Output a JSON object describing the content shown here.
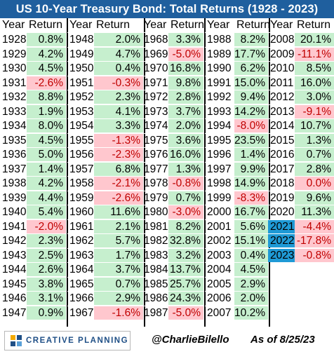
{
  "title": "US 10-Year Treasury Bond: Total Returns (1928 - 2023)",
  "header": {
    "year": "Year",
    "return": "Return"
  },
  "colors": {
    "title_bg": "#1f5f9e",
    "positive_fill": "#c6efce",
    "negative_fill": "#ffc7ce",
    "negative_text": "#c00000",
    "highlight_year_fill": "#1f9ad6",
    "logo_text": "#1f4f86"
  },
  "chart_data": {
    "type": "table",
    "title": "US 10-Year Treasury Bond: Total Returns (1928 - 2023)",
    "columns": [
      "Year",
      "Return"
    ],
    "rows": [
      [
        "1928",
        "0.8%"
      ],
      [
        "1929",
        "4.2%"
      ],
      [
        "1930",
        "4.5%"
      ],
      [
        "1931",
        "-2.6%"
      ],
      [
        "1932",
        "8.8%"
      ],
      [
        "1933",
        "1.9%"
      ],
      [
        "1934",
        "8.0%"
      ],
      [
        "1935",
        "4.5%"
      ],
      [
        "1936",
        "5.0%"
      ],
      [
        "1937",
        "1.4%"
      ],
      [
        "1938",
        "4.2%"
      ],
      [
        "1939",
        "4.4%"
      ],
      [
        "1940",
        "5.4%"
      ],
      [
        "1941",
        "-2.0%"
      ],
      [
        "1942",
        "2.3%"
      ],
      [
        "1943",
        "2.5%"
      ],
      [
        "1944",
        "2.6%"
      ],
      [
        "1945",
        "3.8%"
      ],
      [
        "1946",
        "3.1%"
      ],
      [
        "1947",
        "0.9%"
      ],
      [
        "1948",
        "2.0%"
      ],
      [
        "1949",
        "4.7%"
      ],
      [
        "1950",
        "0.4%"
      ],
      [
        "1951",
        "-0.3%"
      ],
      [
        "1952",
        "2.3%"
      ],
      [
        "1953",
        "4.1%"
      ],
      [
        "1954",
        "3.3%"
      ],
      [
        "1955",
        "-1.3%"
      ],
      [
        "1956",
        "-2.3%"
      ],
      [
        "1957",
        "6.8%"
      ],
      [
        "1958",
        "-2.1%"
      ],
      [
        "1959",
        "-2.6%"
      ],
      [
        "1960",
        "11.6%"
      ],
      [
        "1961",
        "2.1%"
      ],
      [
        "1962",
        "5.7%"
      ],
      [
        "1963",
        "1.7%"
      ],
      [
        "1964",
        "3.7%"
      ],
      [
        "1965",
        "0.7%"
      ],
      [
        "1966",
        "2.9%"
      ],
      [
        "1967",
        "-1.6%"
      ],
      [
        "1968",
        "3.3%"
      ],
      [
        "1969",
        "-5.0%"
      ],
      [
        "1970",
        "16.8%"
      ],
      [
        "1971",
        "9.8%"
      ],
      [
        "1972",
        "2.8%"
      ],
      [
        "1973",
        "3.7%"
      ],
      [
        "1974",
        "2.0%"
      ],
      [
        "1975",
        "3.6%"
      ],
      [
        "1976",
        "16.0%"
      ],
      [
        "1977",
        "1.3%"
      ],
      [
        "1978",
        "-0.8%"
      ],
      [
        "1979",
        "0.7%"
      ],
      [
        "1980",
        "-3.0%"
      ],
      [
        "1981",
        "8.2%"
      ],
      [
        "1982",
        "32.8%"
      ],
      [
        "1983",
        "3.2%"
      ],
      [
        "1984",
        "13.7%"
      ],
      [
        "1985",
        "25.7%"
      ],
      [
        "1986",
        "24.3%"
      ],
      [
        "1987",
        "-5.0%"
      ],
      [
        "1988",
        "8.2%"
      ],
      [
        "1989",
        "17.7%"
      ],
      [
        "1990",
        "6.2%"
      ],
      [
        "1991",
        "15.0%"
      ],
      [
        "1992",
        "9.4%"
      ],
      [
        "1993",
        "14.2%"
      ],
      [
        "1994",
        "-8.0%"
      ],
      [
        "1995",
        "23.5%"
      ],
      [
        "1996",
        "1.4%"
      ],
      [
        "1997",
        "9.9%"
      ],
      [
        "1998",
        "14.9%"
      ],
      [
        "1999",
        "-8.3%"
      ],
      [
        "2000",
        "16.7%"
      ],
      [
        "2001",
        "5.6%"
      ],
      [
        "2002",
        "15.1%"
      ],
      [
        "2003",
        "0.4%"
      ],
      [
        "2004",
        "4.5%"
      ],
      [
        "2005",
        "2.9%"
      ],
      [
        "2006",
        "2.0%"
      ],
      [
        "2007",
        "10.2%"
      ],
      [
        "2008",
        "20.1%"
      ],
      [
        "2009",
        "-11.1%"
      ],
      [
        "2010",
        "8.5%"
      ],
      [
        "2011",
        "16.0%"
      ],
      [
        "2012",
        "3.0%"
      ],
      [
        "2013",
        "-9.1%"
      ],
      [
        "2014",
        "10.7%"
      ],
      [
        "2015",
        "1.3%"
      ],
      [
        "2016",
        "0.7%"
      ],
      [
        "2017",
        "2.8%"
      ],
      [
        "2018",
        "0.0%"
      ],
      [
        "2019",
        "9.6%"
      ],
      [
        "2020",
        "11.3%"
      ],
      [
        "2021",
        "-4.4%"
      ],
      [
        "2022",
        "-17.8%"
      ],
      [
        "2023",
        "-0.8%"
      ]
    ],
    "highlighted_years": [
      "2021",
      "2022",
      "2023"
    ],
    "negative_highlight_values": [
      "2018"
    ]
  },
  "footer": {
    "logo_text": "CREATIVE PLANNING",
    "logo_icon": "creative-planning-logo-icon",
    "handle": "@CharlieBilello",
    "as_of": "As of 8/25/23"
  }
}
